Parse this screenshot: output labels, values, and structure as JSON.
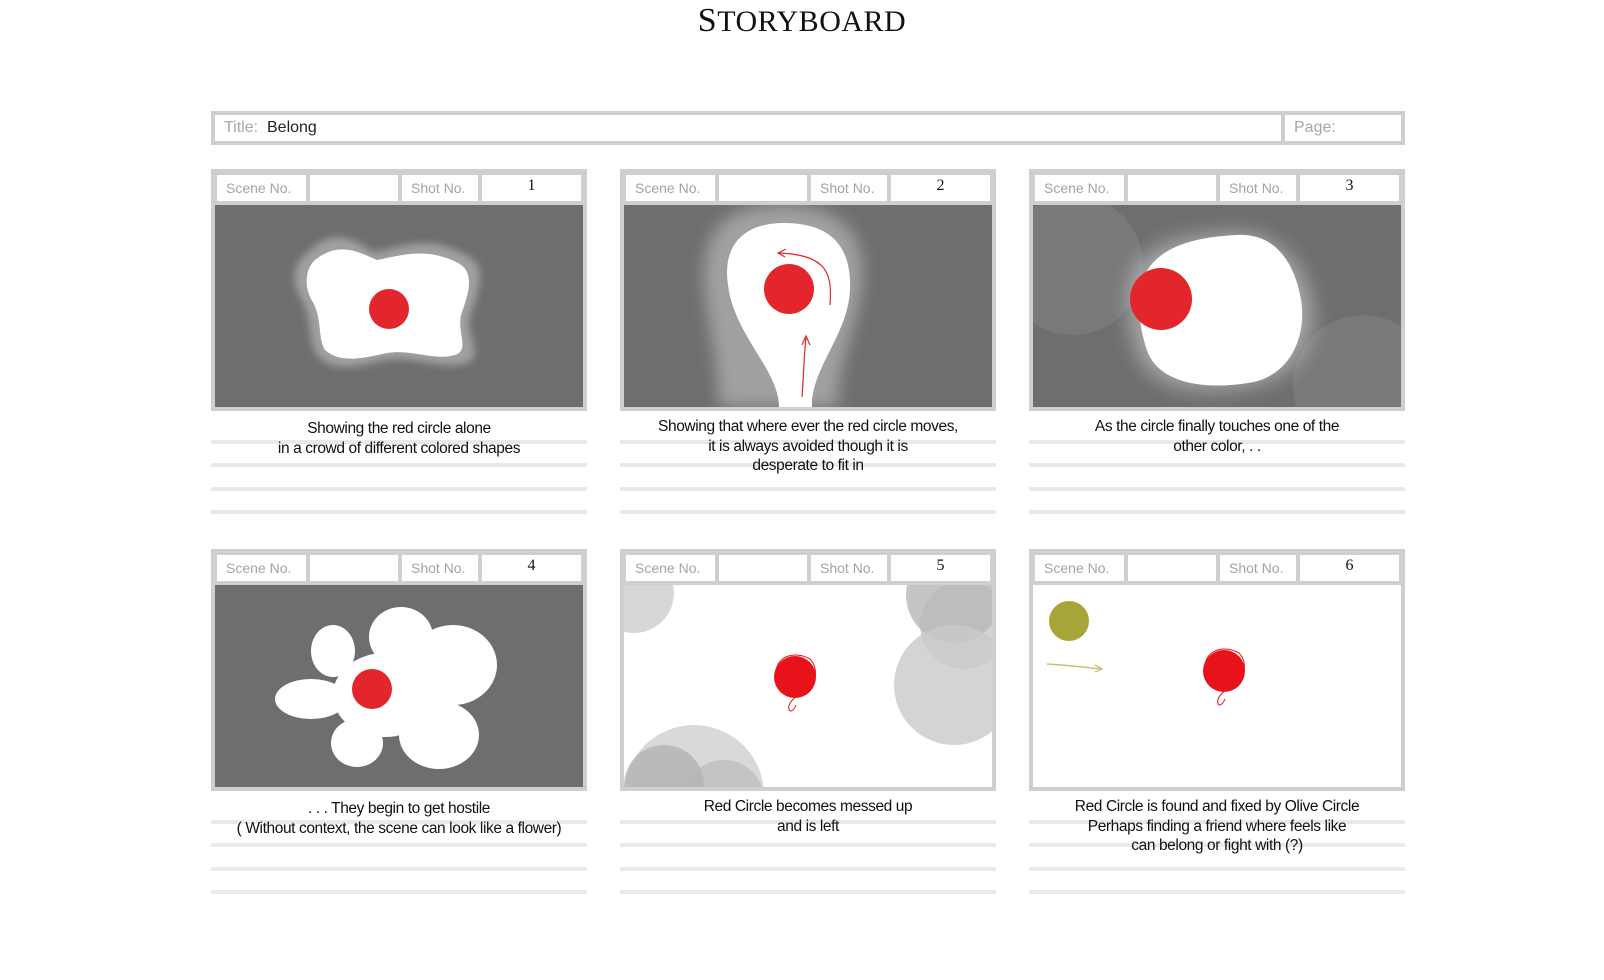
{
  "page": {
    "title_first": "S",
    "title_rest": "TORYBOARD"
  },
  "header": {
    "title_label": "Title:",
    "title_value": "Belong",
    "page_label": "Page:",
    "page_value": ""
  },
  "labels": {
    "scene": "Scene No.",
    "shot": "Shot No."
  },
  "colors": {
    "accent_red": "#e2262b",
    "olive": "#a8a538",
    "frame_grey": "#6e6e6e",
    "border": "#cfcfcf"
  },
  "panels": [
    {
      "scene": "",
      "shot": "1",
      "caption_lines": [
        "Showing the red circle alone",
        "in a crowd of different colored shapes"
      ]
    },
    {
      "scene": "",
      "shot": "2",
      "caption_lines": [
        "Showing that where ever the red circle moves,",
        "it is always avoided though it is",
        "desperate to fit in"
      ]
    },
    {
      "scene": "",
      "shot": "3",
      "caption_lines": [
        "As the circle finally touches one of the",
        "other color, . ."
      ]
    },
    {
      "scene": "",
      "shot": "4",
      "caption_lines": [
        ". . . They begin to get hostile",
        "( Without context, the scene can look like a flower)"
      ]
    },
    {
      "scene": "",
      "shot": "5",
      "caption_lines": [
        "Red Circle becomes messed up",
        "and is left"
      ]
    },
    {
      "scene": "",
      "shot": "6",
      "caption_lines": [
        "Red Circle is found and fixed by Olive Circle",
        "Perhaps finding a friend where feels like",
        "can belong or fight with (?)"
      ]
    }
  ]
}
